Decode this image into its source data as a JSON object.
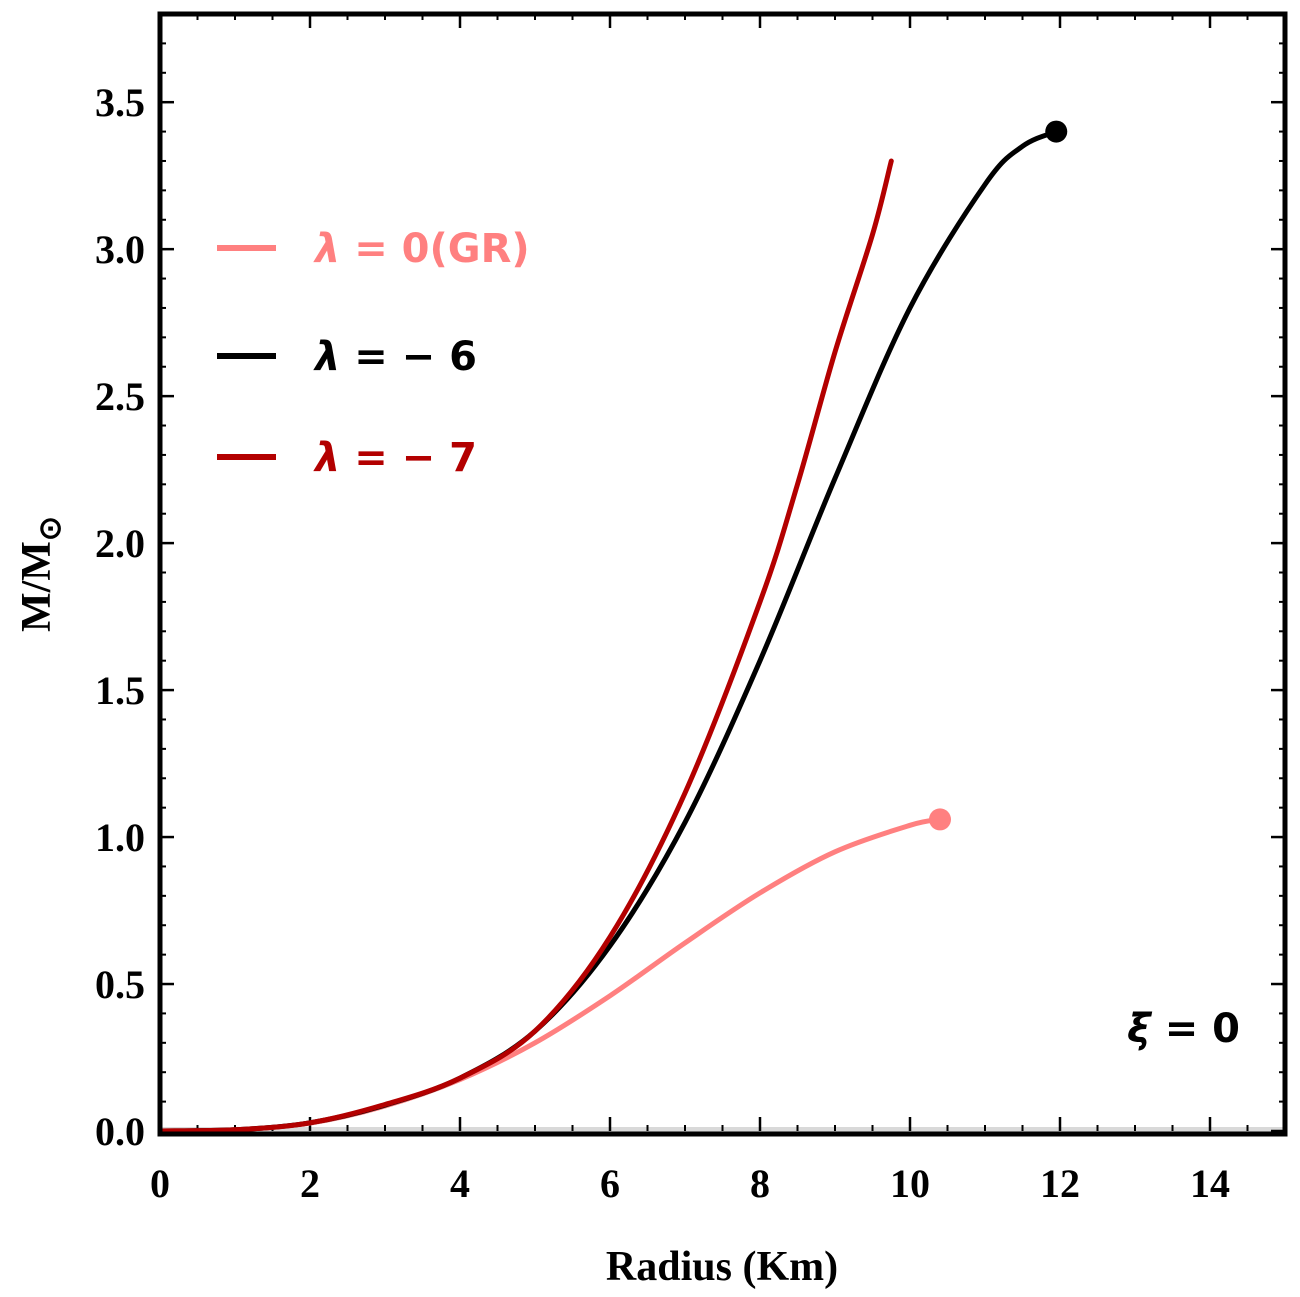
{
  "chart_data": {
    "type": "line",
    "xlabel": "Radius (Km)",
    "ylabel_main": "M/M",
    "ylabel_sub": "⊙",
    "xlim": [
      0,
      15
    ],
    "ylim": [
      0,
      3.8
    ],
    "x_ticks": [
      0,
      2,
      4,
      6,
      8,
      10,
      12,
      14
    ],
    "y_ticks": [
      0.0,
      0.5,
      1.0,
      1.5,
      2.0,
      2.5,
      3.0,
      3.5
    ],
    "x_tick_labels": [
      "0",
      "2",
      "4",
      "6",
      "8",
      "10",
      "12",
      "14"
    ],
    "y_tick_labels": [
      "0.0",
      "0.5",
      "1.0",
      "1.5",
      "2.0",
      "2.5",
      "3.0",
      "3.5"
    ],
    "grid": false,
    "legend_position": "top-left",
    "annotation": {
      "symbol": "ξ",
      "text": " = 0"
    },
    "series": [
      {
        "name": "λ = 0(GR)",
        "symbol": "λ",
        "label_rest": " = 0(GR)",
        "color": "#ff8080",
        "endpoint_marker": true,
        "points": [
          [
            0,
            0
          ],
          [
            1,
            0.004
          ],
          [
            2,
            0.027
          ],
          [
            3,
            0.085
          ],
          [
            4,
            0.175
          ],
          [
            5,
            0.3
          ],
          [
            6,
            0.46
          ],
          [
            7,
            0.64
          ],
          [
            8,
            0.81
          ],
          [
            9,
            0.95
          ],
          [
            10,
            1.04
          ],
          [
            10.4,
            1.06
          ]
        ]
      },
      {
        "name": "λ = − 6",
        "symbol": "λ",
        "label_rest": " = − 6",
        "color": "#000000",
        "endpoint_marker": true,
        "points": [
          [
            0,
            0
          ],
          [
            1,
            0.004
          ],
          [
            2,
            0.028
          ],
          [
            3,
            0.088
          ],
          [
            4,
            0.18
          ],
          [
            5,
            0.34
          ],
          [
            6,
            0.63
          ],
          [
            7,
            1.05
          ],
          [
            8,
            1.6
          ],
          [
            9,
            2.22
          ],
          [
            10,
            2.8
          ],
          [
            11,
            3.22
          ],
          [
            11.5,
            3.35
          ],
          [
            11.95,
            3.4
          ]
        ]
      },
      {
        "name": "λ = − 7",
        "symbol": "λ",
        "label_rest": " = − 7",
        "color": "#b30000",
        "endpoint_marker": false,
        "points": [
          [
            0,
            0
          ],
          [
            1,
            0.004
          ],
          [
            2,
            0.028
          ],
          [
            3,
            0.09
          ],
          [
            4,
            0.18
          ],
          [
            5,
            0.34
          ],
          [
            6,
            0.66
          ],
          [
            7,
            1.15
          ],
          [
            8,
            1.8
          ],
          [
            8.5,
            2.2
          ],
          [
            9,
            2.65
          ],
          [
            9.5,
            3.05
          ],
          [
            9.75,
            3.3
          ]
        ]
      }
    ]
  }
}
